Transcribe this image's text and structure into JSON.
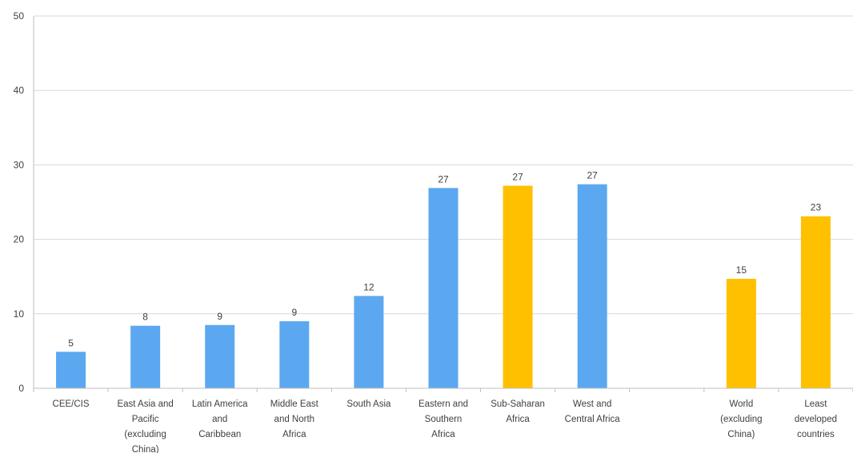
{
  "chart_data": {
    "type": "bar",
    "title": "",
    "xlabel": "",
    "ylabel": "",
    "ylim": [
      0,
      50
    ],
    "yticks": [
      0,
      10,
      20,
      30,
      40,
      50
    ],
    "grid": true,
    "legend": "none",
    "colors": {
      "region": "#5BA8F0",
      "aggregate": "#FFC000"
    },
    "categories": [
      "CEE/CIS",
      "East Asia and Pacific (excluding China)",
      "Latin America and Caribbean",
      "Middle East and North Africa",
      "South Asia",
      "Eastern and Southern Africa",
      "Sub-Saharan Africa",
      "West and Central Africa",
      "",
      "World (excluding China)",
      "Least developed countries"
    ],
    "category_label_lines": [
      [
        "CEE/CIS"
      ],
      [
        "East Asia and",
        "Pacific",
        "(excluding",
        "China)"
      ],
      [
        "Latin America",
        "and",
        "Caribbean"
      ],
      [
        "Middle East",
        "and North",
        "Africa"
      ],
      [
        "South Asia"
      ],
      [
        "Eastern and",
        "Southern",
        "Africa"
      ],
      [
        "Sub-Saharan",
        "Africa"
      ],
      [
        "West and",
        "Central Africa"
      ],
      [],
      [
        "World",
        "(excluding",
        "China)"
      ],
      [
        "Least",
        "developed",
        "countries"
      ]
    ],
    "values": [
      4.9,
      8.4,
      8.5,
      9.0,
      12.4,
      26.9,
      27.2,
      27.4,
      null,
      14.7,
      23.1
    ],
    "data_labels": [
      "5",
      "8",
      "9",
      "9",
      "12",
      "27",
      "27",
      "27",
      "",
      "15",
      "23"
    ],
    "color_groups": [
      "region",
      "region",
      "region",
      "region",
      "region",
      "region",
      "aggregate",
      "region",
      "none",
      "aggregate",
      "aggregate"
    ]
  }
}
